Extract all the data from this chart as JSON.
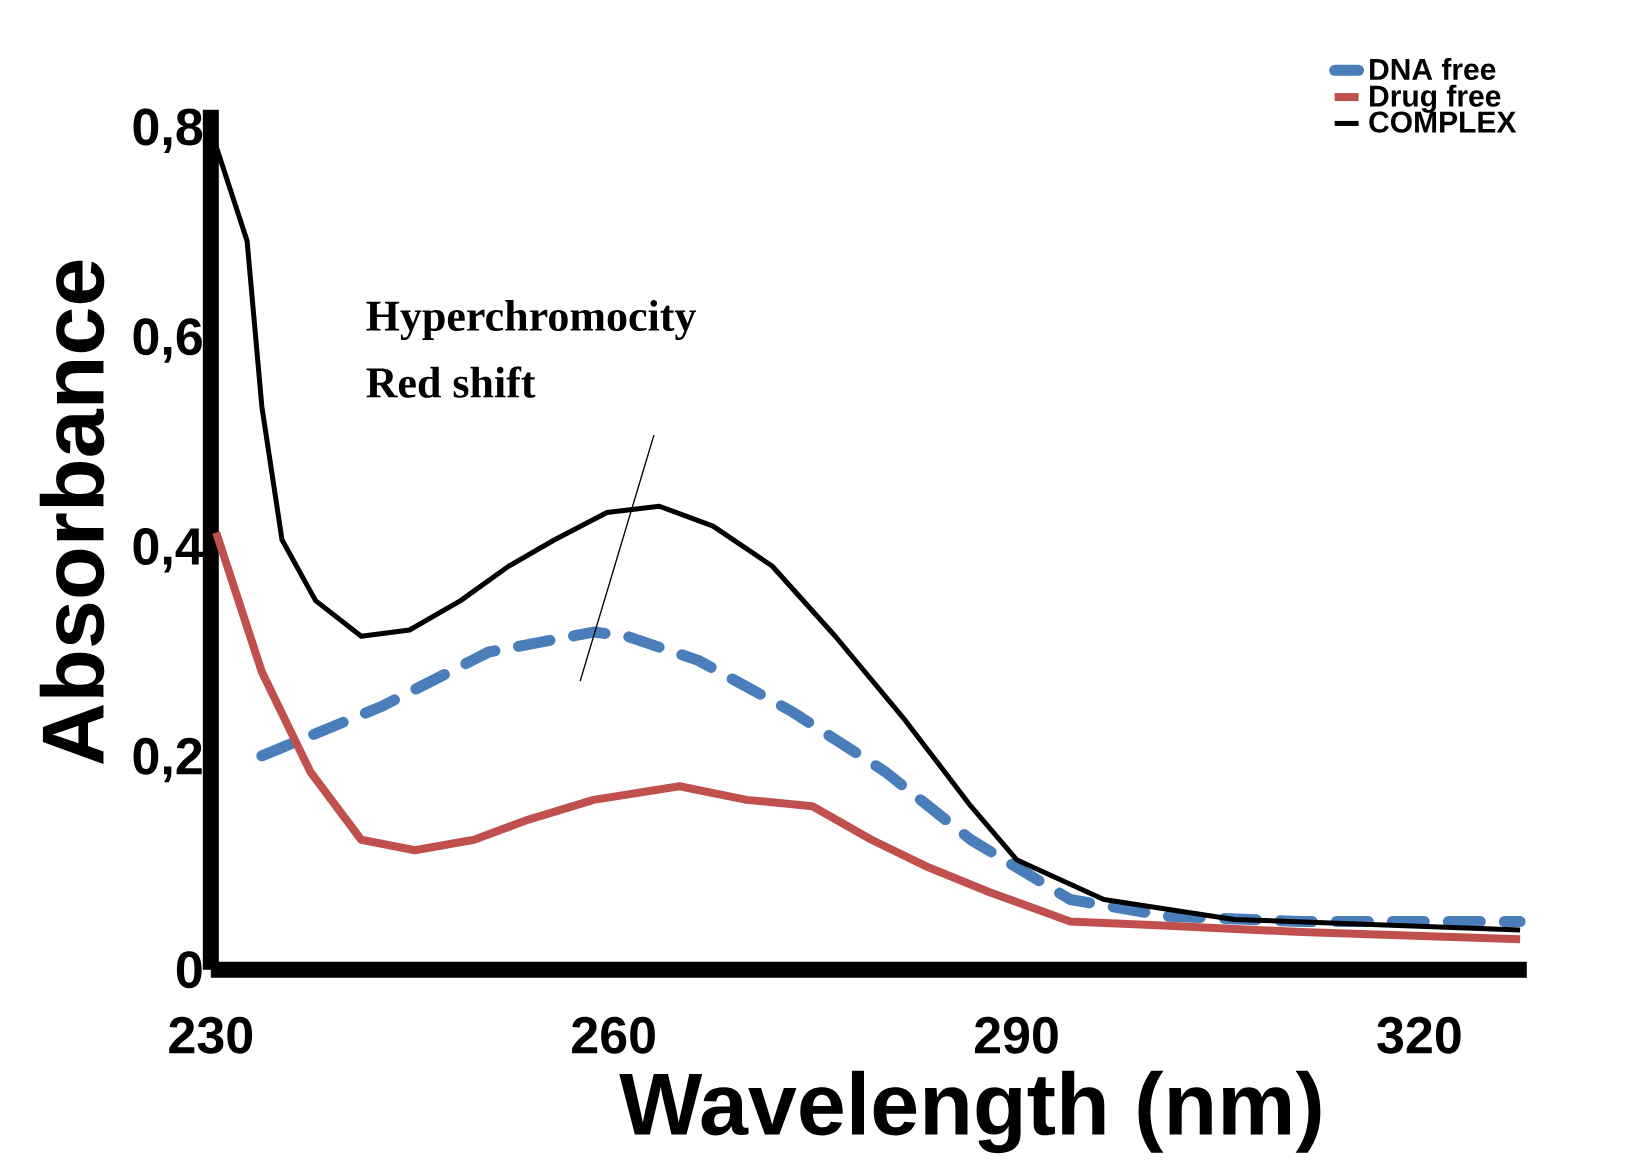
{
  "chart_data": {
    "type": "line",
    "xlabel": "Wavelength (nm)",
    "ylabel": "Absorbance",
    "xlim": [
      230,
      328
    ],
    "ylim": [
      0,
      0.82
    ],
    "xticks": [
      230,
      260,
      290,
      320
    ],
    "yticks": [
      0,
      {
        "value": 0.2,
        "label": "0,2"
      },
      {
        "value": 0.4,
        "label": "0,4"
      },
      {
        "value": 0.6,
        "label": "0,6"
      },
      {
        "value": 0.8,
        "label": "0,8"
      }
    ],
    "legend": "top right",
    "grid": false,
    "annotations": [
      "Hyperchromocity",
      "Red shift"
    ],
    "series": [
      {
        "name": "DNA free",
        "color": "#4a7ebb",
        "line_style": "dashed",
        "x": [
          233.8,
          242.7,
          250.7,
          258.5,
          261,
          266.3,
          273.3,
          280.2,
          286.6,
          294,
          301.3,
          311.2,
          327.5
        ],
        "values": [
          0.204,
          0.251,
          0.303,
          0.322,
          0.318,
          0.295,
          0.246,
          0.189,
          0.124,
          0.067,
          0.051,
          0.046,
          0.046
        ]
      },
      {
        "name": "Drug free",
        "color": "#c0504d",
        "line_style": "solid",
        "x": [
          230.4,
          233.8,
          237.4,
          241.2,
          245.2,
          249.6,
          253.6,
          258.5,
          264.9,
          269.9,
          274.8,
          279.2,
          283.2,
          288,
          294,
          301.3,
          311.2,
          327.5
        ],
        "values": [
          0.417,
          0.284,
          0.189,
          0.124,
          0.114,
          0.124,
          0.143,
          0.162,
          0.175,
          0.162,
          0.156,
          0.124,
          0.099,
          0.074,
          0.046,
          0.042,
          0.036,
          0.029
        ]
      },
      {
        "name": "COMPLEX",
        "color": "#000000",
        "line_style": "solid",
        "x": [
          230.4,
          232.7,
          233.8,
          235.3,
          237.8,
          241.2,
          244.8,
          248.6,
          252.2,
          255.6,
          259.5,
          263.4,
          267.4,
          271.8,
          276.5,
          281.7,
          286.6,
          290,
          296.5,
          306.2,
          327.5
        ],
        "values": [
          0.785,
          0.695,
          0.537,
          0.41,
          0.352,
          0.318,
          0.324,
          0.352,
          0.385,
          0.41,
          0.436,
          0.442,
          0.423,
          0.385,
          0.318,
          0.238,
          0.156,
          0.105,
          0.067,
          0.048,
          0.038
        ]
      }
    ]
  }
}
